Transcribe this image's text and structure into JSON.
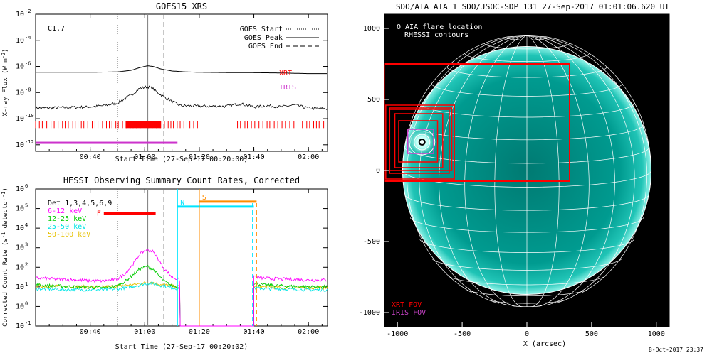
{
  "chart_data": [
    {
      "type": "line",
      "title": "GOES15 XRS",
      "xlabel": "Start Time (27-Sep-17 00:20:00)",
      "ylabel": "X-ray Flux (W m^-2)",
      "ylabel_main": "X-ray Flux (W m",
      "ylabel_exp": "-2",
      "ylabel_close": ")",
      "x_ticks": [
        "00:40",
        "01:00",
        "01:20",
        "01:40",
        "02:00"
      ],
      "x_tick_minutes": [
        40,
        60,
        80,
        100,
        120
      ],
      "xlim_minutes": [
        20,
        127
      ],
      "y_scale": "log",
      "y_tick_exponents": [
        -12,
        -10,
        -8,
        -6,
        -4,
        -2
      ],
      "ylim_exponent": [
        -12.5,
        -2
      ],
      "class_label": "C1.7",
      "legend": [
        {
          "label": "GOES Start",
          "style": "dotted"
        },
        {
          "label": "GOES Peak",
          "style": "solid"
        },
        {
          "label": "GOES End",
          "style": "dashed"
        }
      ],
      "markers_minutes": {
        "start": 50,
        "peak": 61,
        "end": 67
      },
      "bar_labels": [
        {
          "label": "XRT",
          "color": "#ff0000"
        },
        {
          "label": "IRIS",
          "color": "#cc33cc"
        }
      ],
      "series": [
        {
          "name": "",
          "color": "#000000",
          "x": [
            20,
            40,
            50,
            55,
            58,
            61,
            63,
            66,
            70,
            75,
            80,
            90,
            100,
            110,
            120,
            127
          ],
          "log_y": [
            -6.45,
            -6.45,
            -6.42,
            -6.3,
            -6.1,
            -5.95,
            -6.0,
            -6.2,
            -6.35,
            -6.42,
            -6.45,
            -6.47,
            -6.48,
            -6.5,
            -6.55,
            -6.55
          ]
        },
        {
          "name": "",
          "color": "#000000",
          "x": [
            20,
            40,
            45,
            50,
            55,
            58,
            61,
            63,
            66,
            70,
            73,
            80,
            90,
            95,
            100,
            105,
            110,
            115,
            120,
            127
          ],
          "log_y": [
            -9.2,
            -9.1,
            -9.0,
            -8.8,
            -8.2,
            -7.7,
            -7.55,
            -7.7,
            -8.2,
            -8.7,
            -9.0,
            -9.05,
            -9.05,
            -8.85,
            -9.1,
            -9.0,
            -9.1,
            -8.95,
            -9.2,
            -9.25
          ]
        }
      ],
      "coverage": {
        "XRT": [
          [
            20,
            80
          ],
          [
            94,
            127
          ]
        ],
        "XRT_dense": [
          [
            53,
            66
          ]
        ],
        "IRIS": [
          [
            20,
            72
          ]
        ]
      }
    },
    {
      "type": "line",
      "title": "HESSI Observing Summary Count Rates, Corrected",
      "xlabel": "Start Time (27-Sep-17 00:20:02)",
      "ylabel": "Corrected Count Rate (s^-1 detector^-1)",
      "ylabel_main": "Corrected Count Rate (s",
      "ylabel_exp1": "-1",
      "ylabel_mid": " detector",
      "ylabel_exp2": "-1",
      "ylabel_close": ")",
      "x_ticks": [
        "00:40",
        "01:00",
        "01:20",
        "01:40",
        "02:00"
      ],
      "x_tick_minutes": [
        40,
        60,
        80,
        100,
        120
      ],
      "xlim_minutes": [
        20,
        127
      ],
      "y_scale": "log",
      "y_tick_exponents": [
        -1,
        0,
        1,
        2,
        3,
        4,
        5,
        6
      ],
      "ylim_exponent": [
        -1,
        6
      ],
      "detectors": "Det 1,3,4,5,6,9",
      "markers_minutes": {
        "start": 50,
        "peak": 61,
        "end": 67
      },
      "series": [
        {
          "name": "6-12 keV",
          "color": "#ff00ff",
          "x": [
            20,
            35,
            45,
            50,
            53,
            56,
            58,
            60,
            61,
            63,
            65,
            67,
            70,
            72,
            73
          ],
          "log_y": [
            1.45,
            1.35,
            1.3,
            1.4,
            1.7,
            2.2,
            2.65,
            2.85,
            2.9,
            2.8,
            2.4,
            1.95,
            1.5,
            1.4,
            1.3
          ],
          "x2": [
            100,
            103,
            110,
            120,
            127
          ],
          "log_y2": [
            1.55,
            1.45,
            1.4,
            1.35,
            1.35
          ]
        },
        {
          "name": "12-25 keV",
          "color": "#00cc00",
          "x": [
            20,
            35,
            45,
            50,
            53,
            56,
            58,
            60,
            61,
            63,
            65,
            67,
            70,
            72,
            73
          ],
          "log_y": [
            1.1,
            1.0,
            0.95,
            1.05,
            1.3,
            1.65,
            1.9,
            2.0,
            2.05,
            1.9,
            1.6,
            1.3,
            1.05,
            1.0,
            0.95
          ],
          "x2": [
            100,
            103,
            110,
            120,
            127
          ],
          "log_y2": [
            1.2,
            1.1,
            1.05,
            1.0,
            1.0
          ]
        },
        {
          "name": "25-50 keV",
          "color": "#00e5e5",
          "x": [
            20,
            35,
            45,
            50,
            55,
            60,
            62,
            65,
            70,
            73
          ],
          "log_y": [
            0.9,
            0.85,
            0.85,
            0.9,
            1.0,
            1.15,
            1.2,
            1.1,
            0.95,
            0.9
          ],
          "x2": [
            100,
            105,
            110,
            120,
            127
          ],
          "log_y2": [
            0.95,
            0.9,
            0.9,
            0.85,
            0.85
          ]
        },
        {
          "name": "50-100 keV",
          "color": "#e5c000",
          "x": [
            20,
            35,
            45,
            50,
            55,
            60,
            62,
            65,
            70,
            73
          ],
          "log_y": [
            1.05,
            1.0,
            1.0,
            1.05,
            1.1,
            1.2,
            1.25,
            1.15,
            1.05,
            1.0
          ],
          "x2": [
            100,
            105,
            110,
            120,
            127
          ],
          "log_y2": [
            1.0,
            1.0,
            0.95,
            0.95,
            0.95
          ]
        }
      ],
      "annotations": [
        {
          "label": "F",
          "color": "#ff0000",
          "x_from": 45,
          "x_to": 64,
          "log_y": 4.75
        },
        {
          "label": "N",
          "color": "#00e5ff",
          "x_from": 72,
          "x_to": 100,
          "log_y": 5.1,
          "line_x": 72
        },
        {
          "label": "S",
          "color": "#ff8c00",
          "x_from": 80,
          "x_to": 101,
          "log_y": 5.35,
          "line_x": 80
        }
      ],
      "dashed_lines_minutes": [
        {
          "x": 99.5,
          "color": "#00e5ff"
        },
        {
          "x": 101,
          "color": "#ff8c00"
        }
      ],
      "zero_from_minutes": 73,
      "zero_to_minutes": 100
    },
    {
      "type": "scatter",
      "title": "SDO/AIA AIA_1 SDO/JSOC-SDP 131 27-Sep-2017 01:01:06.620 UT",
      "xlabel": "X (arcsec)",
      "ylabel": "",
      "x_ticks": [
        -1000,
        -500,
        0,
        500,
        1000
      ],
      "y_ticks": [
        1000,
        500,
        0,
        -500,
        -1000
      ],
      "xlim": [
        -1100,
        1100
      ],
      "ylim": [
        -1100,
        1100
      ],
      "legend_top": [
        "O AIA flare location",
        "RHESSI contours"
      ],
      "legend_bottom": [
        {
          "label": "XRT FOV",
          "color": "#ff0000"
        },
        {
          "label": "IRIS FOV",
          "color": "#cc44cc"
        }
      ],
      "flare_location": {
        "x": -810,
        "y": 200
      },
      "xrt_fov": {
        "x0": -1100,
        "y0": -75,
        "x1": 330,
        "y1": 750
      },
      "iris_fov": {
        "x0": -920,
        "y0": 120,
        "x1": -720,
        "y1": 290
      },
      "colors": {
        "disk": "#00d7c8",
        "limb": "#ffffff",
        "xrt": "#ff0000",
        "iris": "#cc44cc"
      },
      "footer": "8-Oct-2017 23:37"
    }
  ]
}
